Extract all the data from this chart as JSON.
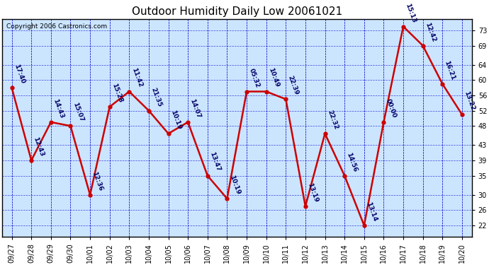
{
  "title": "Outdoor Humidity Daily Low 20061021",
  "copyright": "Copyright 2006 Castronics.com",
  "background_color": "#ffffff",
  "plot_bg_color": "#cce5ff",
  "line_color": "#cc0000",
  "marker_color": "#cc0000",
  "grid_color": "#0000cc",
  "text_color": "#000066",
  "x_labels": [
    "09/27",
    "09/28",
    "09/29",
    "09/30",
    "10/01",
    "10/02",
    "10/03",
    "10/04",
    "10/05",
    "10/06",
    "10/07",
    "10/08",
    "10/09",
    "10/10",
    "10/11",
    "10/12",
    "10/13",
    "10/14",
    "10/15",
    "10/16",
    "10/17",
    "10/18",
    "10/19",
    "10/20"
  ],
  "y_values": [
    58,
    39,
    49,
    48,
    30,
    53,
    57,
    52,
    46,
    49,
    35,
    29,
    57,
    57,
    55,
    27,
    46,
    35,
    22,
    49,
    74,
    69,
    59,
    51
  ],
  "annotations": [
    "17:40",
    "12:43",
    "14:43",
    "15:07",
    "12:36",
    "15:28",
    "11:42",
    "21:35",
    "10:19",
    "14:07",
    "13:47",
    "10:19",
    "05:32",
    "10:49",
    "22:39",
    "13:19",
    "22:32",
    "14:56",
    "13:14",
    "00:00",
    "15:13",
    "12:42",
    "16:21",
    "13:22"
  ],
  "y_ticks": [
    22,
    26,
    30,
    35,
    39,
    43,
    48,
    52,
    56,
    60,
    64,
    69,
    73
  ],
  "ylim": [
    19,
    76
  ],
  "title_fontsize": 11,
  "axis_fontsize": 7,
  "annotation_fontsize": 6.5
}
